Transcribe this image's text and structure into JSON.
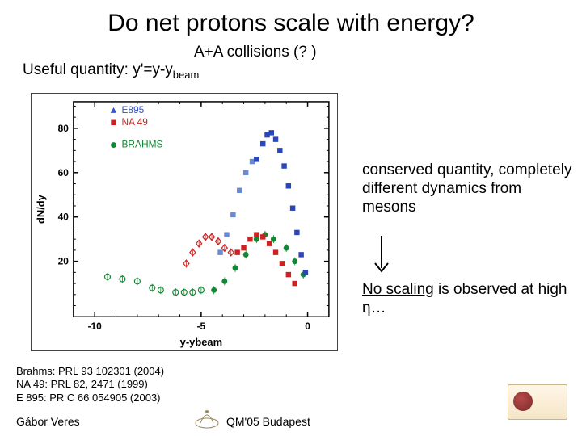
{
  "title": "Do net protons scale with energy?",
  "aa": "A+A collisions (? )",
  "useful": "Useful quantity: y'=y-y",
  "useful_sub": "beam",
  "right_text": "conserved quantity, completely different dynamics from mesons",
  "no_scaling_u": "No scaling",
  "no_scaling_rest": " is observed at high η…",
  "refs": {
    "r1": "Brahms:  PRL 93 102301 (2004)",
    "r2": "NA 49: PRL 82, 2471 (1999)",
    "r3": "E 895:  PR C 66 054905 (2003)"
  },
  "footer": {
    "author": "Gábor Veres",
    "conf": "QM'05 Budapest"
  },
  "chart": {
    "type": "scatter",
    "background_color": "#ffffff",
    "axis_color": "#000000",
    "tick_fontsize": 12,
    "xlabel": "y-ybeam",
    "ylabel": "dN/dy",
    "label_fontsize": 13,
    "label_weight": "bold",
    "xlim": [
      -11,
      1
    ],
    "ylim": [
      -5,
      92
    ],
    "xticks": [
      -10,
      -5,
      0
    ],
    "yticks": [
      20,
      40,
      60,
      80
    ],
    "legend": [
      {
        "label": "E895",
        "marker": "triangle",
        "color": "#3355cc",
        "fill": true
      },
      {
        "label": "NA 49",
        "marker": "square",
        "color": "#cc2222",
        "fill": true
      },
      {
        "label": "BRAHMS",
        "marker": "circle",
        "color": "#118833",
        "fill": true
      }
    ],
    "legend_fontsize": 12,
    "marker_size": 5,
    "open_marker_stroke": 1.2,
    "series": {
      "green_open": {
        "color": "#118833",
        "marker": "circle",
        "fill": false,
        "data": [
          [
            -9.4,
            13
          ],
          [
            -8.7,
            12
          ],
          [
            -8.0,
            11
          ],
          [
            -7.3,
            8
          ],
          [
            -6.9,
            7
          ],
          [
            -6.2,
            6
          ],
          [
            -5.8,
            6
          ],
          [
            -5.4,
            6
          ],
          [
            -5.0,
            7
          ]
        ]
      },
      "green_fill": {
        "color": "#118833",
        "marker": "circle",
        "fill": true,
        "data": [
          [
            -4.4,
            7
          ],
          [
            -3.9,
            11
          ],
          [
            -3.4,
            17
          ],
          [
            -2.9,
            23
          ],
          [
            -2.4,
            30
          ],
          [
            -2.0,
            32
          ],
          [
            -1.6,
            30
          ],
          [
            -1.0,
            26
          ],
          [
            -0.6,
            20
          ],
          [
            -0.2,
            14
          ]
        ]
      },
      "red_open": {
        "color": "#cc2222",
        "marker": "diamond",
        "fill": false,
        "data": [
          [
            -5.7,
            19
          ],
          [
            -5.4,
            24
          ],
          [
            -5.1,
            28
          ],
          [
            -4.8,
            31
          ],
          [
            -4.5,
            31
          ],
          [
            -4.2,
            29
          ],
          [
            -3.9,
            26
          ],
          [
            -3.6,
            24
          ]
        ]
      },
      "red_fill": {
        "color": "#cc2222",
        "marker": "square",
        "fill": true,
        "data": [
          [
            -3.3,
            24
          ],
          [
            -3.0,
            26
          ],
          [
            -2.7,
            30
          ],
          [
            -2.4,
            32
          ],
          [
            -2.1,
            31
          ],
          [
            -1.8,
            28
          ],
          [
            -1.5,
            24
          ],
          [
            -1.2,
            19
          ],
          [
            -0.9,
            14
          ],
          [
            -0.6,
            10
          ]
        ]
      },
      "blue_light": {
        "color": "#6a88d8",
        "marker": "square",
        "fill": true,
        "data": [
          [
            -4.1,
            24
          ],
          [
            -3.8,
            32
          ],
          [
            -3.5,
            41
          ],
          [
            -3.2,
            52
          ],
          [
            -2.9,
            60
          ],
          [
            -2.6,
            65
          ],
          [
            -2.4,
            66
          ]
        ]
      },
      "blue_dark": {
        "color": "#2a46b8",
        "marker": "square",
        "fill": true,
        "data": [
          [
            -2.4,
            66
          ],
          [
            -2.1,
            73
          ],
          [
            -1.9,
            77
          ],
          [
            -1.7,
            78
          ],
          [
            -1.5,
            75
          ],
          [
            -1.3,
            70
          ],
          [
            -1.1,
            63
          ],
          [
            -0.9,
            54
          ],
          [
            -0.7,
            44
          ],
          [
            -0.5,
            33
          ],
          [
            -0.3,
            23
          ],
          [
            -0.1,
            15
          ]
        ]
      }
    }
  }
}
